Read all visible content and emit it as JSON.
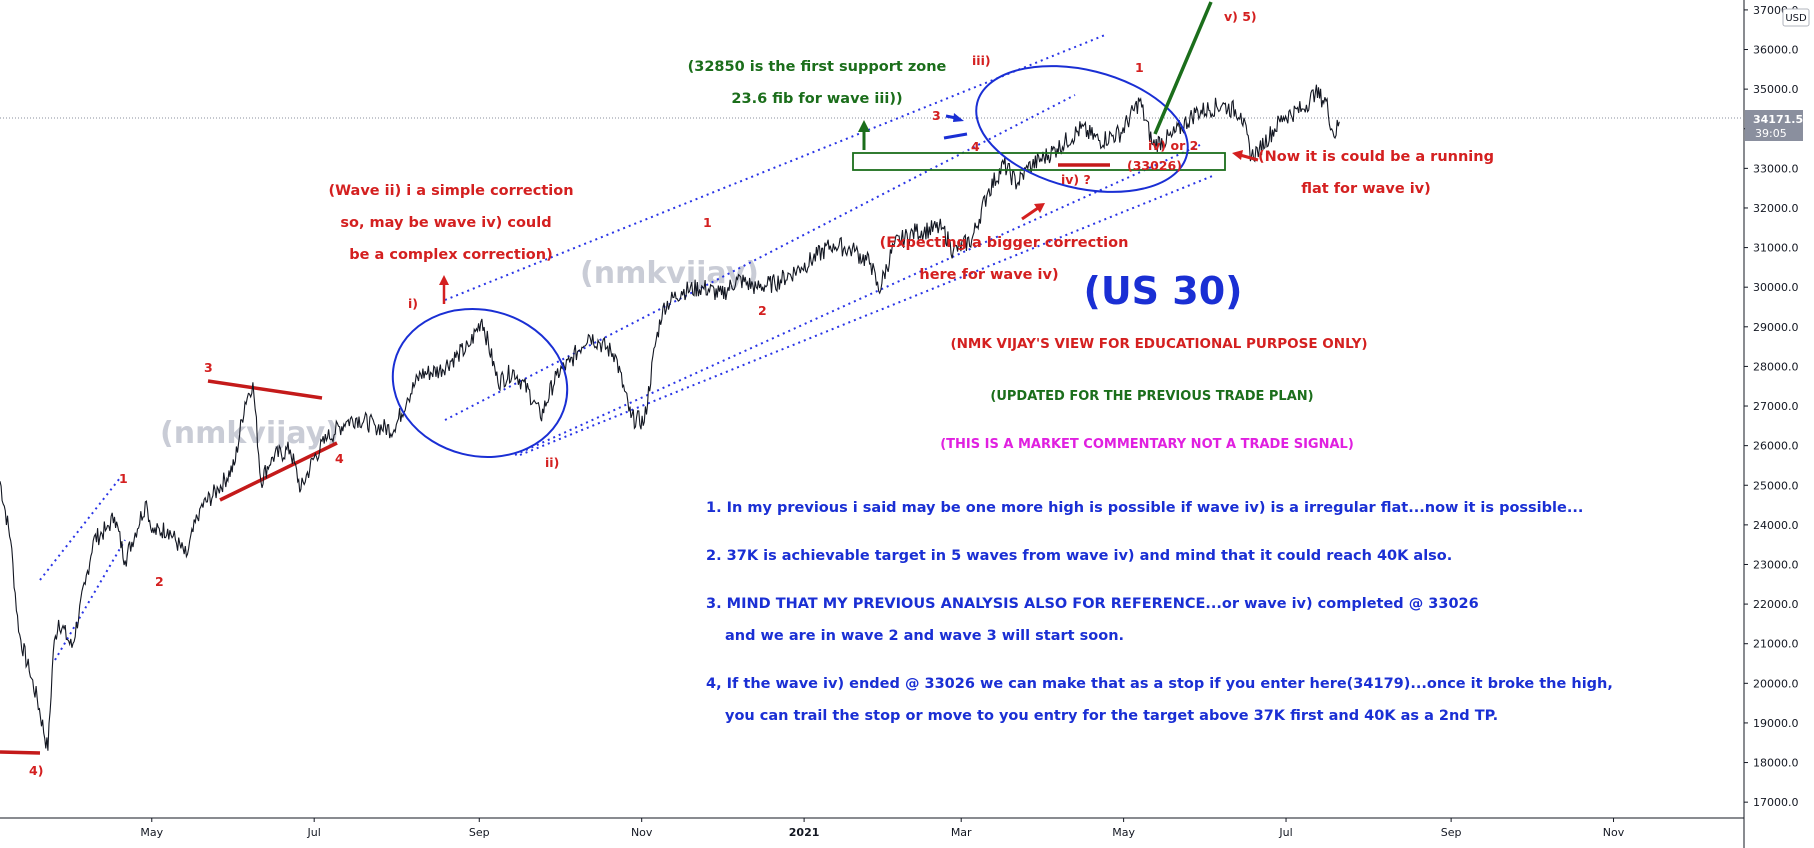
{
  "chart_data": {
    "type": "line",
    "title": "(US 30)",
    "currency": "USD",
    "ylim": [
      16600,
      37250
    ],
    "y_ticks": [
      17000,
      18000,
      19000,
      20000,
      21000,
      22000,
      23000,
      24000,
      25000,
      26000,
      27000,
      28000,
      29000,
      30000,
      31000,
      32000,
      33000,
      34000,
      35000,
      36000,
      37000
    ],
    "x_ticks": [
      "May",
      "Jul",
      "Sep",
      "Nov",
      "2021",
      "Mar",
      "May",
      "Jul",
      "Sep",
      "Nov"
    ],
    "x_tick_dates": [
      "2020-05-01",
      "2020-07-01",
      "2020-09-01",
      "2020-11-01",
      "2021-01-01",
      "2021-03-01",
      "2021-05-01",
      "2021-07-01",
      "2021-09-01",
      "2021-11-01"
    ],
    "xlim": [
      "2020-03-05",
      "2021-12-20"
    ],
    "current_price": "34171.5",
    "countdown": "39:05",
    "current_value": 34171.5,
    "series": [
      {
        "values": [
          [
            "2020-03-05",
            25100
          ],
          [
            "2020-03-09",
            23600
          ],
          [
            "2020-03-12",
            21300
          ],
          [
            "2020-03-16",
            20300
          ],
          [
            "2020-03-19",
            19600
          ],
          [
            "2020-03-23",
            18300
          ],
          [
            "2020-03-25",
            20800
          ],
          [
            "2020-03-27",
            21600
          ],
          [
            "2020-04-01",
            20900
          ],
          [
            "2020-04-06",
            22500
          ],
          [
            "2020-04-09",
            23600
          ],
          [
            "2020-04-14",
            23900
          ],
          [
            "2020-04-17",
            24200
          ],
          [
            "2020-04-21",
            23100
          ],
          [
            "2020-04-29",
            24600
          ],
          [
            "2020-05-01",
            23800
          ],
          [
            "2020-05-07",
            23900
          ],
          [
            "2020-05-14",
            23200
          ],
          [
            "2020-05-19",
            24400
          ],
          [
            "2020-05-26",
            24900
          ],
          [
            "2020-06-01",
            25500
          ],
          [
            "2020-06-05",
            27100
          ],
          [
            "2020-06-08",
            27600
          ],
          [
            "2020-06-11",
            25100
          ],
          [
            "2020-06-15",
            25700
          ],
          [
            "2020-06-22",
            25900
          ],
          [
            "2020-06-26",
            24900
          ],
          [
            "2020-07-01",
            25700
          ],
          [
            "2020-07-06",
            26200
          ],
          [
            "2020-07-13",
            26600
          ],
          [
            "2020-07-17",
            26700
          ],
          [
            "2020-07-24",
            26500
          ],
          [
            "2020-07-31",
            26400
          ],
          [
            "2020-08-05",
            27200
          ],
          [
            "2020-08-10",
            27800
          ],
          [
            "2020-08-17",
            27900
          ],
          [
            "2020-08-24",
            28300
          ],
          [
            "2020-08-28",
            28500
          ],
          [
            "2020-09-02",
            29200
          ],
          [
            "2020-09-08",
            27600
          ],
          [
            "2020-09-14",
            27900
          ],
          [
            "2020-09-22",
            27100
          ],
          [
            "2020-09-24",
            26700
          ],
          [
            "2020-09-30",
            27800
          ],
          [
            "2020-10-05",
            28100
          ],
          [
            "2020-10-12",
            28800
          ],
          [
            "2020-10-16",
            28600
          ],
          [
            "2020-10-22",
            28300
          ],
          [
            "2020-10-28",
            26700
          ],
          [
            "2020-11-02",
            26600
          ],
          [
            "2020-11-06",
            28500
          ],
          [
            "2020-11-09",
            29500
          ],
          [
            "2020-11-16",
            29900
          ],
          [
            "2020-11-24",
            30000
          ],
          [
            "2020-12-01",
            29800
          ],
          [
            "2020-12-07",
            30200
          ],
          [
            "2020-12-14",
            30000
          ],
          [
            "2020-12-21",
            30100
          ],
          [
            "2020-12-31",
            30500
          ],
          [
            "2021-01-06",
            30800
          ],
          [
            "2021-01-12",
            31100
          ],
          [
            "2021-01-20",
            30900
          ],
          [
            "2021-01-26",
            30600
          ],
          [
            "2021-01-29",
            29900
          ],
          [
            "2021-02-04",
            31100
          ],
          [
            "2021-02-12",
            31400
          ],
          [
            "2021-02-22",
            31500
          ],
          [
            "2021-02-26",
            30900
          ],
          [
            "2021-03-05",
            31200
          ],
          [
            "2021-03-11",
            32400
          ],
          [
            "2021-03-17",
            33100
          ],
          [
            "2021-03-22",
            32600
          ],
          [
            "2021-03-26",
            33000
          ],
          [
            "2021-04-06",
            33500
          ],
          [
            "2021-04-15",
            34000
          ],
          [
            "2021-04-22",
            33700
          ],
          [
            "2021-04-30",
            33900
          ],
          [
            "2021-05-07",
            34700
          ],
          [
            "2021-05-12",
            33600
          ],
          [
            "2021-05-19",
            33800
          ],
          [
            "2021-05-28",
            34400
          ],
          [
            "2021-06-07",
            34600
          ],
          [
            "2021-06-14",
            34400
          ],
          [
            "2021-06-18",
            33300
          ],
          [
            "2021-06-21",
            33500
          ],
          [
            "2021-06-30",
            34300
          ],
          [
            "2021-07-07",
            34500
          ],
          [
            "2021-07-12",
            34900
          ],
          [
            "2021-07-16",
            34700
          ],
          [
            "2021-07-19",
            33800
          ],
          [
            "2021-07-21",
            34179
          ]
        ]
      }
    ],
    "annotations": [
      {
        "text": "(32850 is the first support zone",
        "color": "#1b6e1b"
      },
      {
        "text": "23.6 fib for wave iii))",
        "color": "#1b6e1b"
      },
      {
        "text": "(Wave ii) i a simple correction",
        "color": "#d42020"
      },
      {
        "text": "so, may be wave iv) could",
        "color": "#d42020"
      },
      {
        "text": "be a complex correction)",
        "color": "#d42020"
      },
      {
        "text": "(Now it is could be a running",
        "color": "#d42020"
      },
      {
        "text": "flat for wave iv)",
        "color": "#d42020"
      },
      {
        "text": "(Expecting a bigger correction",
        "color": "#d42020"
      },
      {
        "text": "here for wave iv)",
        "color": "#d42020"
      },
      {
        "text": "(NMK VIJAY'S VIEW FOR EDUCATIONAL PURPOSE ONLY)",
        "color": "#d42020"
      },
      {
        "text": "(UPDATED FOR THE PREVIOUS TRADE PLAN)",
        "color": "#1b6e1b"
      },
      {
        "text": "(THIS IS A MARKET COMMENTARY NOT A TRADE SIGNAL)",
        "color": "#e020e0"
      },
      {
        "text": "(33026)",
        "color": "#d42020"
      }
    ],
    "wave_labels": [
      "4)",
      "1",
      "2",
      "3",
      "4",
      "i)",
      "ii)",
      "1",
      "2",
      "iii)",
      "3",
      "4",
      "1",
      "iv) or 2",
      "iv) ?",
      "v) 5)"
    ],
    "notes": [
      "1. In my previous i said may be one more high is possible if wave iv) is a irregular flat...now it is possible...",
      "2. 37K is achievable target in 5 waves from wave iv) and mind that it could reach 40K also.",
      "3. MIND THAT MY PREVIOUS ANALYSIS ALSO FOR REFERENCE...or wave iv) completed @ 33026",
      "and we are in wave 2 and wave 3 will start soon.",
      "4, If the wave iv) ended @ 33026 we can make that as a stop if you enter here(34179)...once it broke the high,",
      "you can trail the stop or move to you entry for the target above 37K first and 40K as a 2nd TP."
    ],
    "watermark": "(nmkvijay)",
    "grid": false
  },
  "colors": {
    "price": "#131722",
    "wave_red": "#d42020",
    "green": "#1b6e1b",
    "blue": "#1a2fd4",
    "channel": "#2a35e6",
    "magenta": "#e020e0"
  }
}
